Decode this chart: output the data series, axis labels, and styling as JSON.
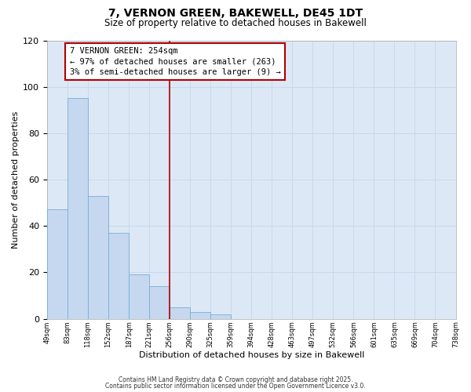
{
  "title_line1": "7, VERNON GREEN, BAKEWELL, DE45 1DT",
  "title_line2": "Size of property relative to detached houses in Bakewell",
  "xlabel": "Distribution of detached houses by size in Bakewell",
  "ylabel": "Number of detached properties",
  "bar_values": [
    47,
    95,
    53,
    37,
    19,
    14,
    5,
    3,
    2,
    0,
    0,
    0,
    0,
    0,
    0,
    0,
    0,
    0,
    0,
    0
  ],
  "categories": [
    "49sqm",
    "83sqm",
    "118sqm",
    "152sqm",
    "187sqm",
    "221sqm",
    "256sqm",
    "290sqm",
    "325sqm",
    "359sqm",
    "394sqm",
    "428sqm",
    "463sqm",
    "497sqm",
    "532sqm",
    "566sqm",
    "601sqm",
    "635sqm",
    "669sqm",
    "704sqm",
    "738sqm"
  ],
  "bar_color": "#c5d8f0",
  "bar_edge_color": "#7aadd4",
  "grid_color": "#c8d8ec",
  "background_color": "#dce8f5",
  "vline_color": "#b00000",
  "vline_x_bin": 6,
  "annotation_line1": "7 VERNON GREEN: 254sqm",
  "annotation_line2": "← 97% of detached houses are smaller (263)",
  "annotation_line3": "3% of semi-detached houses are larger (9) →",
  "annotation_box_edgecolor": "#b00000",
  "ylim": [
    0,
    120
  ],
  "yticks": [
    0,
    20,
    40,
    60,
    80,
    100,
    120
  ],
  "footnote1": "Contains HM Land Registry data © Crown copyright and database right 2025.",
  "footnote2": "Contains public sector information licensed under the Open Government Licence v3.0."
}
